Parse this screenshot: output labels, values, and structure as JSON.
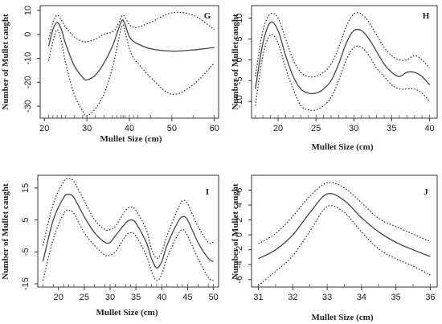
{
  "chart_data": [
    {
      "type": "line",
      "panel_label": "G",
      "xlabel": "Mullet Size (cm)",
      "ylabel": "Number of Mullet caught",
      "xlim": [
        19,
        61
      ],
      "ylim": [
        -35,
        12
      ],
      "x_ticks": [
        20,
        30,
        40,
        50,
        60
      ],
      "y_ticks": [
        10,
        0,
        -10,
        -20,
        -30
      ],
      "x": [
        21,
        22,
        23,
        24,
        25,
        27,
        29,
        30,
        32,
        34,
        36,
        37,
        38,
        38.5,
        39,
        40,
        41,
        42,
        45,
        50,
        55,
        60
      ],
      "series": [
        {
          "style": "solid",
          "values": [
            -5,
            2,
            5,
            2,
            -4,
            -13,
            -18,
            -19,
            -17,
            -12,
            -5,
            0,
            5,
            6,
            4,
            -1,
            -3,
            -4,
            -6,
            -7,
            -6.5,
            -5.5
          ]
        },
        {
          "style": "dotted",
          "values": [
            -2,
            5,
            8,
            6,
            3,
            -1,
            -3,
            -3,
            -2,
            0,
            1,
            3,
            7,
            8,
            7,
            4,
            3,
            3,
            5,
            9,
            8,
            2
          ]
        },
        {
          "style": "dotted",
          "values": [
            -11,
            -3,
            2,
            -3,
            -12,
            -25,
            -32,
            -34,
            -31,
            -25,
            -14,
            -6,
            2,
            4,
            1,
            -6,
            -10,
            -12,
            -18,
            -25,
            -21,
            -12
          ]
        }
      ]
    },
    {
      "type": "line",
      "panel_label": "H",
      "xlabel": "Mullet Size (cm)",
      "ylabel": "Number of Mullet caught",
      "xlim": [
        16.5,
        41
      ],
      "ylim": [
        -14,
        13
      ],
      "x_ticks": [
        20,
        25,
        30,
        35,
        40
      ],
      "y_ticks": [
        10,
        5,
        0,
        -5,
        -10
      ],
      "x": [
        17,
        18,
        19,
        20,
        21,
        22,
        23,
        24,
        25,
        26,
        27,
        28,
        29,
        30,
        31,
        32,
        33,
        34,
        35,
        36,
        37,
        38,
        39,
        40
      ],
      "series": [
        {
          "style": "solid",
          "values": [
            -7,
            4,
            9,
            7,
            1,
            -4,
            -7,
            -8,
            -8,
            -7,
            -5,
            -1,
            4,
            7,
            7,
            5,
            2,
            -1,
            -3,
            -4,
            -3,
            -3,
            -4,
            -6
          ]
        },
        {
          "style": "dotted",
          "values": [
            -4,
            7,
            11,
            10,
            5,
            0,
            -3,
            -4,
            -4,
            -3,
            -1,
            3,
            8,
            11,
            11,
            9,
            6,
            3,
            1,
            0,
            0,
            1,
            0,
            -2
          ]
        },
        {
          "style": "dotted",
          "values": [
            -11,
            1,
            6,
            4,
            -2,
            -7,
            -11,
            -12,
            -12,
            -11,
            -9,
            -5,
            0,
            3,
            3,
            1,
            -2,
            -4,
            -6,
            -7,
            -7,
            -7,
            -8,
            -10
          ]
        }
      ]
    },
    {
      "type": "line",
      "panel_label": "I",
      "xlabel": "Mullet Size (cm)",
      "ylabel": "Number of Mullet caught",
      "xlim": [
        16,
        51
      ],
      "ylim": [
        -16,
        19
      ],
      "x_ticks": [
        20,
        25,
        30,
        35,
        40,
        45,
        50
      ],
      "y_ticks": [
        15,
        5,
        -5,
        -15
      ],
      "x": [
        17,
        19,
        21,
        22,
        23,
        25,
        27,
        29,
        30,
        31,
        33,
        34,
        35,
        37,
        38,
        39,
        40,
        41,
        43,
        44,
        45,
        47,
        49,
        50
      ],
      "series": [
        {
          "style": "solid",
          "values": [
            -8,
            5,
            12,
            13,
            12,
            6,
            1,
            -2,
            -2,
            0,
            4,
            5,
            4,
            -2,
            -7,
            -10,
            -8,
            -3,
            4,
            6,
            5,
            -2,
            -7,
            -8
          ]
        },
        {
          "style": "dotted",
          "values": [
            -3,
            10,
            17,
            18,
            17,
            11,
            5,
            2,
            2,
            3,
            8,
            9,
            8,
            2,
            -4,
            -7,
            -5,
            0,
            8,
            11,
            10,
            3,
            -2,
            -2
          ]
        },
        {
          "style": "dotted",
          "values": [
            -14,
            -1,
            7,
            8,
            7,
            1,
            -3,
            -6,
            -6,
            -5,
            0,
            1,
            0,
            -6,
            -11,
            -14,
            -12,
            -7,
            0,
            2,
            0,
            -7,
            -13,
            -14
          ]
        }
      ]
    },
    {
      "type": "line",
      "panel_label": "J",
      "xlabel": "Mullet Size (cm)",
      "ylabel": "Number of Mullet caught",
      "xlim": [
        30.8,
        36.2
      ],
      "ylim": [
        -7,
        8
      ],
      "x_ticks": [
        31,
        32,
        33,
        34,
        35,
        36
      ],
      "y_ticks": [
        6,
        4,
        2,
        0,
        -2,
        -4,
        -6
      ],
      "x": [
        31,
        31.5,
        32,
        32.5,
        33,
        33.5,
        34,
        34.5,
        35,
        35.5,
        36
      ],
      "series": [
        {
          "style": "solid",
          "values": [
            -3.2,
            -2,
            0,
            3,
            5.5,
            4.6,
            2.3,
            0.4,
            -1,
            -2,
            -2.9
          ]
        },
        {
          "style": "dotted",
          "values": [
            -1.2,
            0.2,
            2.5,
            5.2,
            7,
            6.3,
            4.3,
            2.2,
            1.1,
            0.1,
            -0.9
          ]
        },
        {
          "style": "dotted",
          "values": [
            -6.8,
            -4.9,
            -2.8,
            0.5,
            3.8,
            3,
            0.4,
            -1.9,
            -3.2,
            -4.2,
            -5.4
          ]
        }
      ]
    }
  ]
}
